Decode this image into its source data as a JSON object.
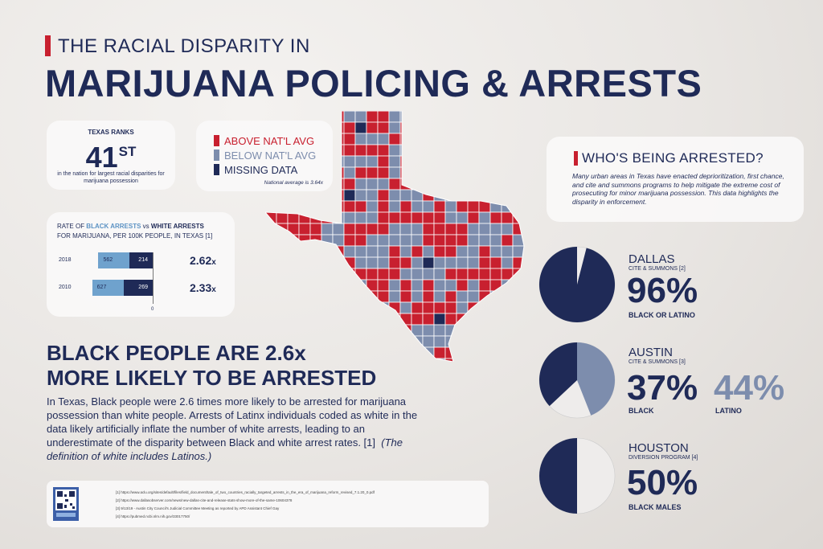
{
  "title": {
    "small": "THE RACIAL DISPARITY IN",
    "main": "MARIJUANA POLICING & ARRESTS"
  },
  "rank": {
    "label": "TEXAS RANKS",
    "value": "41",
    "suffix": "ST",
    "caption": "in the nation for largest racial disparities for marijuana possession"
  },
  "legend": {
    "items": [
      {
        "label": "ABOVE NAT'L AVG",
        "color": "#c8202f"
      },
      {
        "label": "BELOW NAT'L AVG",
        "color": "#7d8dad"
      },
      {
        "label": "MISSING DATA",
        "color": "#1f2a57"
      }
    ],
    "note": "National average is 3.64x"
  },
  "arrest_rates": {
    "title_line1_a": "RATE OF ",
    "title_line1_b": "BLACK ARRESTS",
    "title_line1_c": " vs ",
    "title_line1_d": "WHITE ARRESTS",
    "title_line2": "FOR MARIJUANA, PER 100K PEOPLE, IN TEXAS [1]",
    "axis_zero": "0",
    "rows": [
      {
        "year": "2018",
        "black": 562,
        "white": 214,
        "ratio": "2.62",
        "ratio_suffix": "x"
      },
      {
        "year": "2010",
        "black": 627,
        "white": 269,
        "ratio": "2.33",
        "ratio_suffix": "x"
      }
    ]
  },
  "headline": {
    "line1": "BLACK PEOPLE ARE 2.6x",
    "line2": "MORE LIKELY TO BE ARRESTED",
    "body": "In Texas, Black people were 2.6 times more likely to be arrested for marijuana possession than white people. Arrests of Latinx individuals coded as white in the data likely artificially inflate the number of white arrests, leading to an underestimate of the disparity between Black and white arrest rates. [1]",
    "body_note": "(The definition of white includes Latinos.)"
  },
  "footnotes": [
    "[1]  https://www.aclu.org/sites/default/files/field_document/tale_of_two_countries_racially_targeted_arrests_in_the_era_of_marijuana_reform_revised_7.1.20_0.pdf",
    "[2]  https://www.dallasobserver.com/news/new-dallas-cite-and-release-stats-show-more-of-the-same-10604378",
    "[3]  9/13/19 - Austin City Council's Judicial Committee Meeting as reported by APD Assistant Chief Gay",
    "[4]  https://pubmed.ncbi.nlm.nih.gov/33017750/"
  ],
  "who": {
    "title": "WHO'S BEING ARRESTED?",
    "text": "Many urban areas in Texas have enacted deprioritization, first chance, and cite and summons programs to help mitigate the extreme cost of prosecuting for minor marijuana possession. This data highlights the disparity in enforcement."
  },
  "cities": [
    {
      "city": "DALLAS",
      "program": "CITE & SUMMONS [2]",
      "percent": "96%",
      "label": "BLACK OR LATINO",
      "share": 0.96
    },
    {
      "city": "AUSTIN",
      "program": "CITE & SUMMONS [3]",
      "percent": "37%",
      "label": "BLACK",
      "share": 0.37,
      "percent2": "44%",
      "label2": "LATINO",
      "share2": 0.44
    },
    {
      "city": "HOUSTON",
      "program": "DIVERSION PROGRAM [4]",
      "percent": "50%",
      "label": "BLACK MALES",
      "share": 0.5
    }
  ],
  "colors": {
    "navy": "#1f2a57",
    "red": "#c8202f",
    "slate": "#7d8dad",
    "light_blue": "#6fa2cd"
  }
}
